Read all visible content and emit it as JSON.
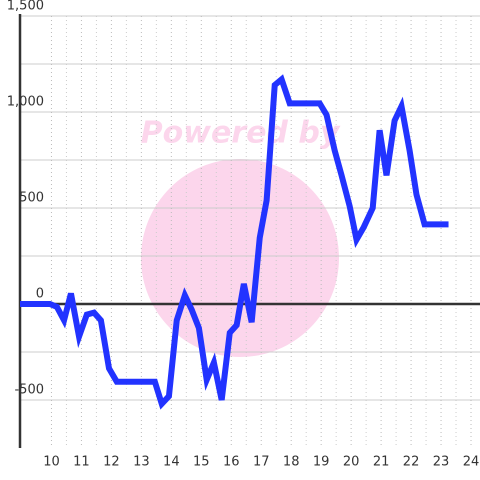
{
  "chart_data": {
    "type": "line",
    "watermark": "Powered by",
    "color": "#2233ff",
    "x": [
      8.95,
      9.95,
      10.18,
      10.42,
      10.65,
      10.92,
      11.18,
      11.42,
      11.65,
      11.92,
      12.18,
      13.45,
      13.68,
      13.92,
      14.18,
      14.45,
      14.68,
      14.92,
      15.18,
      15.42,
      15.68,
      15.95,
      16.18,
      16.42,
      16.68,
      16.95,
      17.18,
      17.45,
      17.68,
      17.95,
      18.95,
      19.18,
      19.45,
      19.68,
      19.95,
      20.18,
      20.42,
      20.72,
      20.95,
      21.18,
      21.45,
      21.68,
      21.95,
      22.18,
      22.45,
      23.25
    ],
    "values": [
      0,
      0,
      -15,
      -85,
      55,
      -170,
      -55,
      -45,
      -85,
      -335,
      -405,
      -405,
      -520,
      -480,
      -85,
      45,
      -30,
      -125,
      -395,
      -305,
      -500,
      -150,
      -110,
      105,
      -95,
      345,
      540,
      1140,
      1170,
      1045,
      1045,
      985,
      800,
      670,
      510,
      335,
      400,
      500,
      905,
      670,
      955,
      1030,
      800,
      570,
      415,
      415
    ],
    "xlim": [
      8.95,
      24.3
    ],
    "ylim": [
      -750,
      1500
    ],
    "xticks": [
      10,
      11,
      12,
      13,
      14,
      15,
      16,
      17,
      18,
      19,
      20,
      21,
      22,
      23,
      24
    ],
    "x_minor_ticks": [
      10.5,
      11.5,
      12.5,
      13.5,
      14.5,
      15.5,
      16.5,
      17.5,
      18.5,
      19.5,
      20.5,
      21.5,
      22.5,
      23.5
    ],
    "yticks": [
      -500,
      0,
      500,
      {
        "value": 1000,
        "label": "1,000"
      },
      {
        "value": 1500,
        "label": "1,500"
      }
    ],
    "y_minor_ticks": [
      -250,
      250,
      750,
      1250
    ],
    "grid": true
  }
}
